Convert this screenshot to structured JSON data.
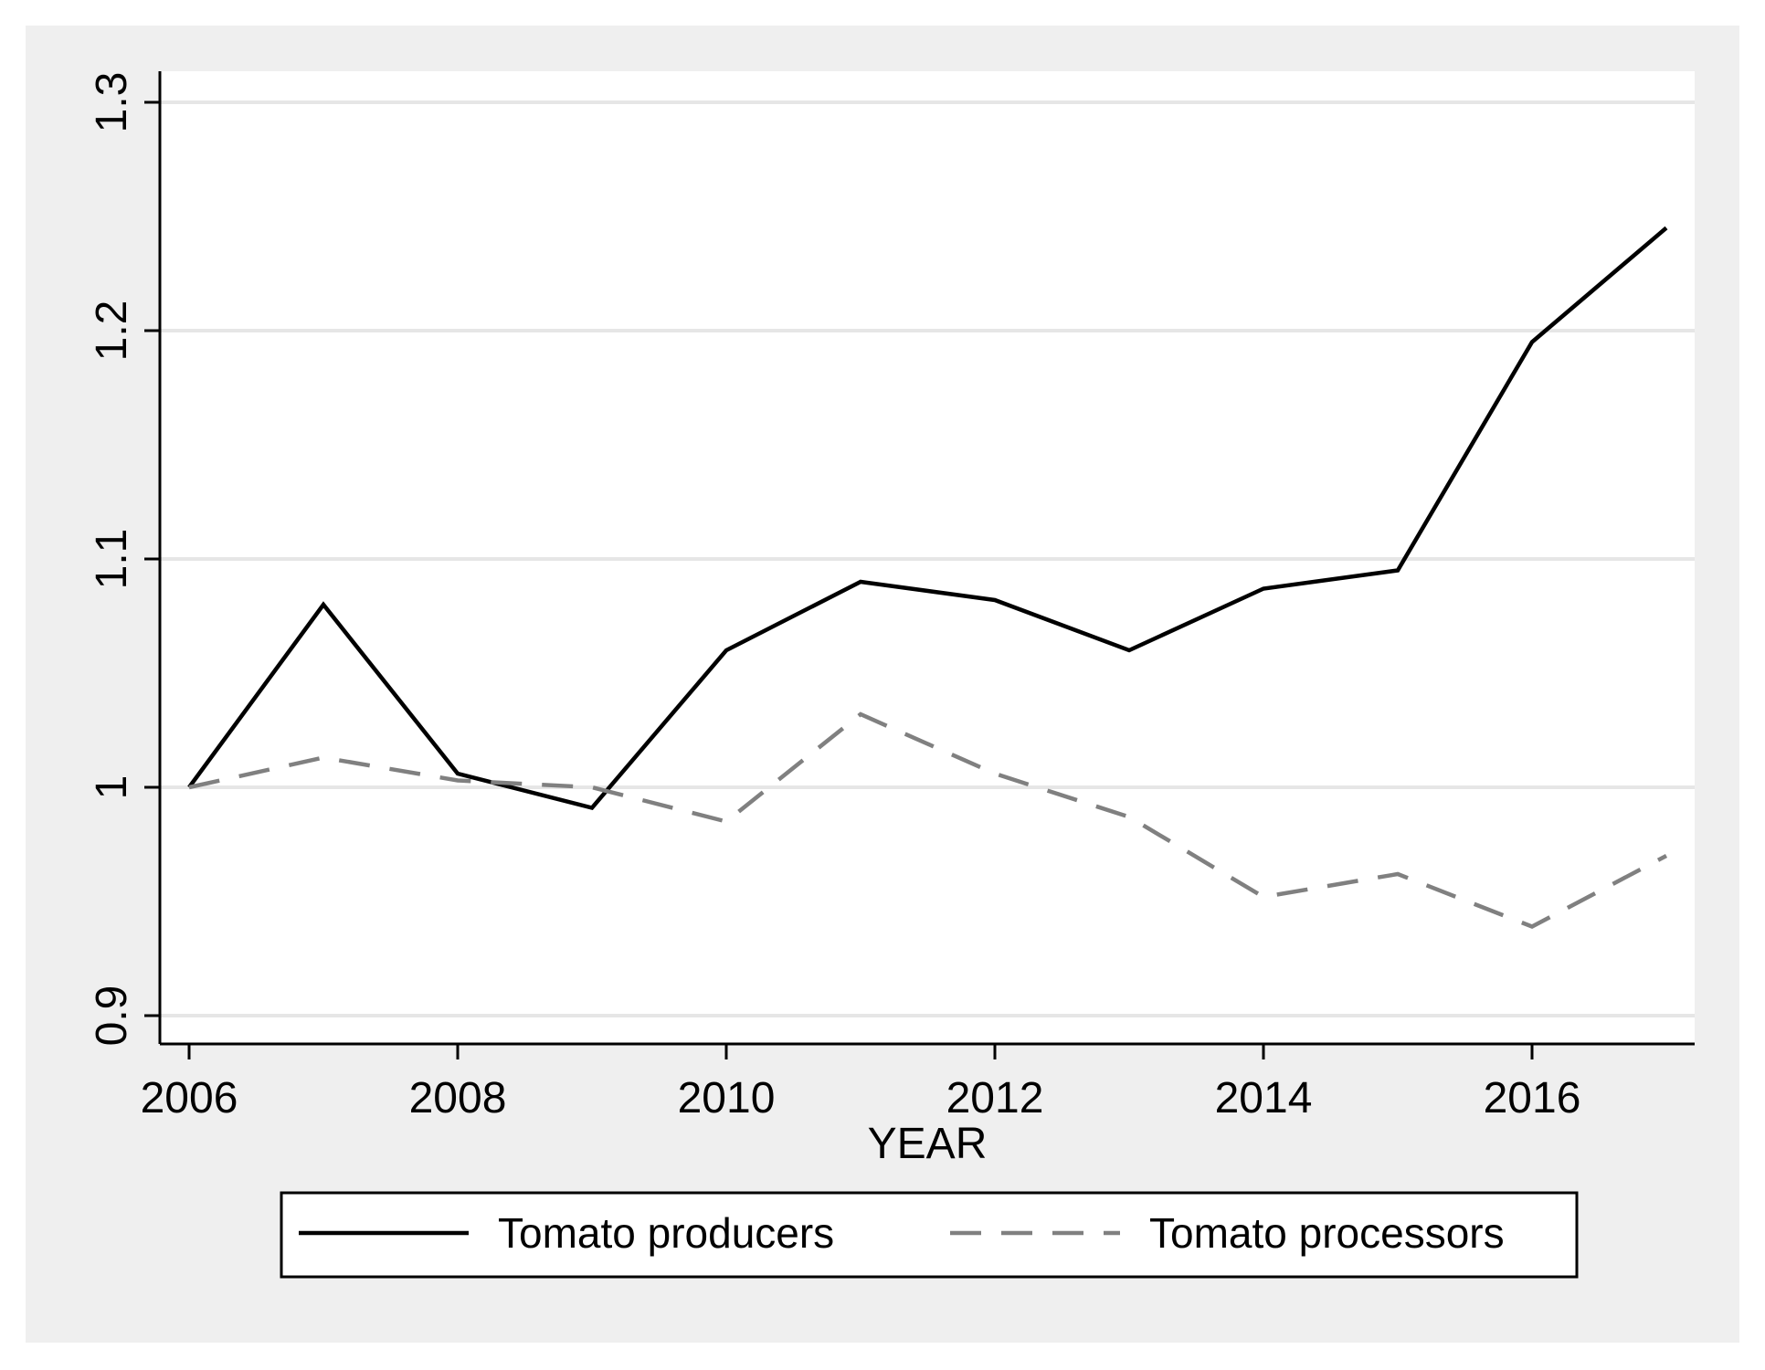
{
  "chart_data": {
    "type": "line",
    "title": "",
    "xlabel": "YEAR",
    "ylabel": "",
    "x": [
      2006,
      2007,
      2008,
      2009,
      2010,
      2011,
      2012,
      2013,
      2014,
      2015,
      2016,
      2017
    ],
    "xlim": [
      2006,
      2017
    ],
    "ylim": [
      0.9,
      1.3
    ],
    "x_ticks": [
      2006,
      2008,
      2010,
      2012,
      2014,
      2016
    ],
    "x_tick_labels": [
      "2006",
      "2008",
      "2010",
      "2012",
      "2014",
      "2016"
    ],
    "y_ticks": [
      0.9,
      1.0,
      1.1,
      1.2,
      1.3
    ],
    "y_tick_labels": [
      "0.9",
      "1",
      "1.1",
      "1.2",
      "1.3"
    ],
    "grid": true,
    "legend_position": "bottom",
    "series": [
      {
        "name": "Tomato producers",
        "values": [
          1.0,
          1.08,
          1.006,
          0.991,
          1.06,
          1.09,
          1.082,
          1.06,
          1.087,
          1.095,
          1.195,
          1.245
        ],
        "color": "#000000",
        "dash": "solid"
      },
      {
        "name": "Tomato processors",
        "values": [
          1.0,
          1.013,
          1.003,
          1.0,
          0.985,
          1.032,
          1.006,
          0.987,
          0.952,
          0.962,
          0.939,
          0.97
        ],
        "color": "#808080",
        "dash": "dashed"
      }
    ]
  },
  "colors": {
    "outer_background": "#efefef",
    "plot_background": "#ffffff",
    "grid": "#e6e6e6"
  }
}
